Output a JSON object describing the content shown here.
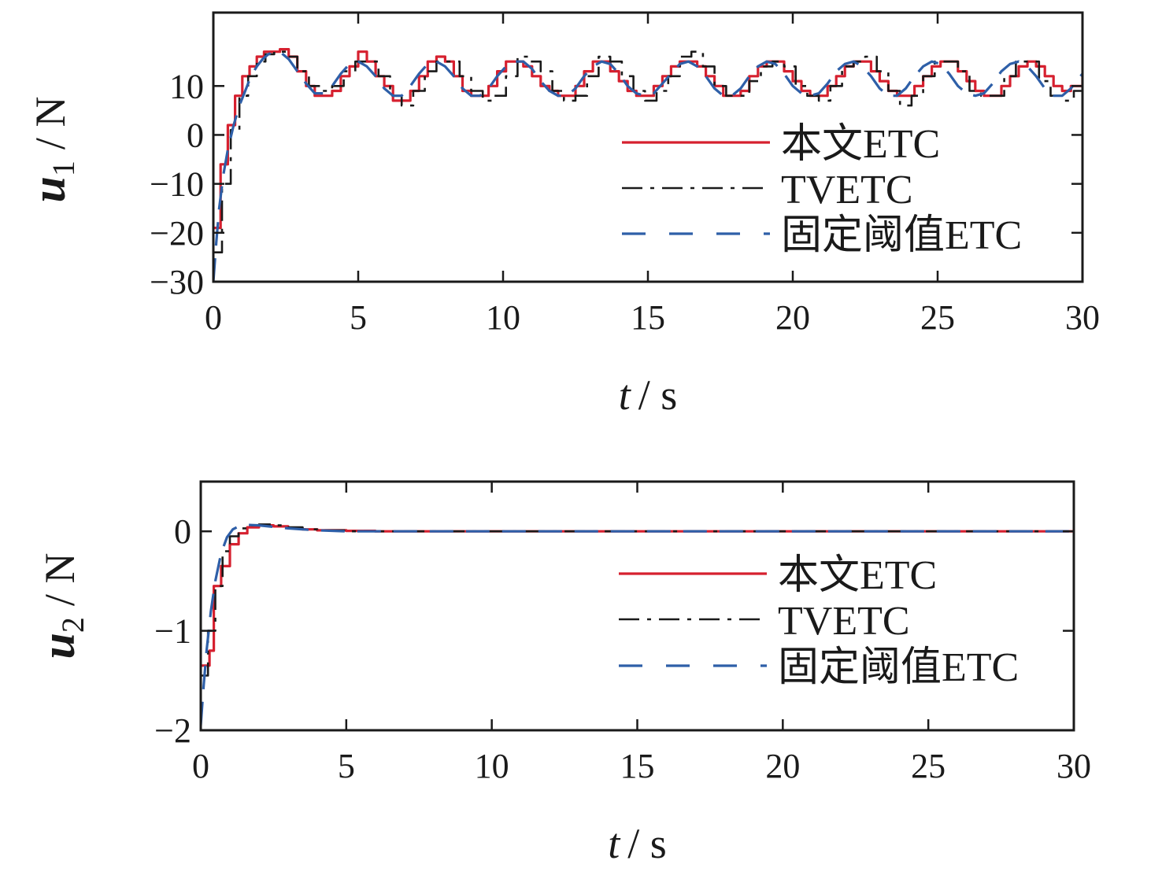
{
  "colors": {
    "proposed_etc": "#d6202f",
    "tvetc": "#1a1a1a",
    "fixed_threshold_etc": "#2e5fa8",
    "axis": "#1a1a1a"
  },
  "chart_data": [
    {
      "type": "line",
      "panel": "top",
      "ylabel_var": "u",
      "ylabel_sub": "1",
      "ylabel_unit": "/ N",
      "xlabel_var": "t",
      "xlabel_unit": "/ s",
      "xlim": [
        0,
        30
      ],
      "ylim": [
        -30,
        25
      ],
      "xticks": [
        0,
        5,
        10,
        15,
        20,
        25,
        30
      ],
      "yticks": [
        -30,
        -20,
        -10,
        0,
        10
      ],
      "ytick_labels": [
        "−30",
        "−20",
        "−10",
        "0",
        "10"
      ],
      "legend_position": "lower-right",
      "grid": false,
      "series": [
        {
          "name": "本文ETC",
          "style": "solid-step",
          "x": [
            0,
            0.25,
            0.5,
            0.75,
            1.0,
            1.25,
            1.5,
            1.75,
            2.0,
            2.3,
            2.6,
            2.9,
            3.2,
            3.5,
            3.8,
            4.1,
            4.4,
            4.7,
            5.0,
            5.3,
            5.6,
            5.9,
            6.2,
            6.5,
            6.8,
            7.1,
            7.4,
            7.7,
            8.0,
            8.3,
            8.6,
            8.9,
            9.2,
            9.5,
            9.8,
            10.1,
            10.4,
            10.7,
            11.0,
            11.3,
            11.6,
            11.9,
            12.2,
            12.5,
            12.8,
            13.1,
            13.4,
            13.7,
            14.0,
            14.3,
            14.6,
            14.9,
            15.2,
            15.5,
            15.8,
            16.1,
            16.4,
            16.7,
            17.0,
            17.3,
            17.6,
            17.9,
            18.2,
            18.5,
            18.8,
            19.1,
            19.4,
            19.7,
            20.0,
            20.3,
            20.6,
            20.9,
            21.2,
            21.5,
            21.8,
            22.1,
            22.4,
            22.7,
            23.0,
            23.3,
            23.6,
            23.9,
            24.2,
            24.5,
            24.8,
            25.1,
            25.4,
            25.7,
            26.0,
            26.3,
            26.6,
            26.9,
            27.2,
            27.5,
            27.8,
            28.1,
            28.4,
            28.7,
            29.0,
            29.3,
            29.6,
            30.0
          ],
          "y": [
            -19,
            -6,
            2,
            8,
            12,
            14,
            16,
            17,
            17,
            17.5,
            16,
            13,
            10,
            8,
            8,
            9,
            12,
            14,
            17,
            15,
            12,
            10,
            7,
            7,
            9,
            12,
            15,
            16,
            15,
            12,
            9,
            8,
            8,
            10,
            13,
            15,
            15,
            14,
            12,
            10,
            9,
            8,
            8,
            10,
            13,
            15,
            15,
            13,
            11,
            9,
            8,
            8,
            10,
            12,
            14,
            15,
            15,
            14,
            12,
            10,
            8,
            8,
            9,
            12,
            14,
            15,
            15,
            13,
            11,
            9,
            8,
            8,
            10,
            12,
            14,
            15,
            15,
            13,
            11,
            9,
            8,
            8,
            10,
            12,
            14,
            15,
            15,
            13,
            11,
            9,
            8,
            8,
            10,
            12,
            14,
            15,
            14,
            12,
            10,
            9,
            10,
            12
          ]
        },
        {
          "name": "TVETC",
          "style": "dash-dot-step",
          "x": [
            0,
            0.3,
            0.6,
            0.9,
            1.2,
            1.5,
            1.8,
            2.1,
            2.5,
            2.9,
            3.3,
            3.7,
            4.1,
            4.5,
            4.9,
            5.3,
            5.7,
            6.1,
            6.5,
            6.9,
            7.3,
            7.7,
            8.1,
            8.5,
            8.9,
            9.3,
            9.7,
            10.1,
            10.5,
            10.9,
            11.3,
            11.7,
            12.1,
            12.5,
            12.9,
            13.3,
            13.7,
            14.1,
            14.5,
            14.9,
            15.3,
            15.7,
            16.1,
            16.5,
            16.9,
            17.3,
            17.7,
            18.1,
            18.5,
            18.9,
            19.3,
            19.7,
            20.1,
            20.5,
            20.9,
            21.3,
            21.7,
            22.1,
            22.5,
            22.9,
            23.3,
            23.7,
            24.1,
            24.5,
            24.9,
            25.3,
            25.7,
            26.1,
            26.5,
            26.9,
            27.3,
            27.7,
            28.1,
            28.5,
            28.9,
            29.3,
            29.7,
            30.0
          ],
          "y": [
            -24,
            -10,
            1,
            8,
            12,
            15,
            16.5,
            17,
            16,
            13,
            10,
            9,
            10,
            13,
            15,
            15,
            12,
            8,
            6,
            9,
            13,
            15,
            15,
            12,
            9,
            7,
            8,
            12,
            16,
            15,
            13,
            9,
            7,
            8,
            12,
            16,
            15,
            12,
            9,
            7,
            9,
            12,
            16,
            17,
            14,
            10,
            8,
            8,
            11,
            14,
            15,
            14,
            10,
            8,
            7,
            10,
            14,
            15,
            16,
            13,
            9,
            6,
            8,
            12,
            15,
            15,
            13,
            9,
            8,
            8,
            12,
            15,
            15,
            11,
            8,
            7,
            9,
            12
          ]
        },
        {
          "name": "固定阈值ETC",
          "style": "dashed-smooth",
          "x": [
            0,
            0.1,
            0.2,
            0.35,
            0.5,
            0.7,
            0.9,
            1.1,
            1.3,
            1.5,
            1.7,
            1.9,
            2.1,
            2.3,
            2.6,
            2.9,
            3.2,
            3.5,
            3.8,
            4.1,
            4.4,
            4.7,
            5.0,
            5.3,
            5.6,
            5.9,
            6.2,
            6.5,
            6.8,
            7.1,
            7.4,
            7.7,
            8.0,
            8.3,
            8.6,
            8.9,
            9.2,
            9.5,
            9.8,
            10.1,
            10.4,
            10.7,
            11.0,
            11.3,
            11.6,
            11.9,
            12.2,
            12.5,
            12.8,
            13.1,
            13.4,
            13.7,
            14.0,
            14.3,
            14.6,
            14.9,
            15.2,
            15.5,
            15.8,
            16.1,
            16.4,
            16.7,
            17.0,
            17.3,
            17.6,
            17.9,
            18.2,
            18.5,
            18.8,
            19.1,
            19.4,
            19.7,
            20.0,
            20.3,
            20.6,
            20.9,
            21.2,
            21.5,
            21.8,
            22.1,
            22.4,
            22.7,
            23.0,
            23.3,
            23.6,
            23.9,
            24.2,
            24.5,
            24.8,
            25.1,
            25.4,
            25.7,
            26.0,
            26.3,
            26.6,
            26.9,
            27.2,
            27.5,
            27.8,
            28.1,
            28.4,
            28.7,
            29.0,
            29.3,
            29.6,
            30.0
          ],
          "y": [
            -30,
            -22,
            -15,
            -8,
            -3,
            2,
            6,
            9,
            12,
            14,
            15.5,
            16.5,
            17,
            17,
            15.5,
            13,
            10.5,
            8.5,
            8.5,
            10,
            12.5,
            14.5,
            15,
            14,
            12,
            9.5,
            8,
            8,
            10,
            12.5,
            14.5,
            15,
            14,
            12,
            9.5,
            8,
            8,
            9.5,
            12,
            14,
            15,
            15,
            13.5,
            11,
            9,
            8,
            8,
            9.5,
            12,
            14,
            15,
            14.5,
            12.5,
            10,
            8.5,
            8,
            8.5,
            10.5,
            12.5,
            14.5,
            15,
            14,
            12,
            9.5,
            8,
            8,
            9.5,
            12,
            14,
            15,
            14.5,
            12.5,
            10,
            8.5,
            8,
            8.5,
            10.5,
            13,
            14.5,
            15,
            14,
            12,
            9.5,
            8,
            8,
            9.5,
            12,
            14,
            15,
            14.5,
            12.5,
            10,
            8.5,
            8,
            8.5,
            10.5,
            13,
            14.5,
            15,
            14,
            12,
            9.5,
            8,
            8,
            9.5,
            12.5
          ]
        }
      ],
      "legend": [
        "本文ETC",
        "TVETC",
        "固定阈值ETC"
      ]
    },
    {
      "type": "line",
      "panel": "bottom",
      "ylabel_var": "u",
      "ylabel_sub": "2",
      "ylabel_unit": "/ N",
      "xlabel_var": "t",
      "xlabel_unit": "/ s",
      "xlim": [
        0,
        30
      ],
      "ylim": [
        -2,
        0.5
      ],
      "xticks": [
        0,
        5,
        10,
        15,
        20,
        25,
        30
      ],
      "yticks": [
        -2,
        -1,
        0
      ],
      "ytick_labels": [
        "−2",
        "−1",
        "0"
      ],
      "legend_position": "lower-right",
      "grid": false,
      "series": [
        {
          "name": "本文ETC",
          "style": "solid-step",
          "x": [
            0,
            0.3,
            0.45,
            0.7,
            1.0,
            1.3,
            1.6,
            2.0,
            2.5,
            3.0,
            3.5,
            4.0,
            5.0,
            6.0,
            8.0,
            10.0,
            15.0,
            20.0,
            25.0,
            30.0
          ],
          "y": [
            -1.35,
            -1.2,
            -0.55,
            -0.35,
            -0.13,
            -0.02,
            0.04,
            0.06,
            0.05,
            0.03,
            0.02,
            0.01,
            0.005,
            0.0,
            0.0,
            0.0,
            0.0,
            0.0,
            0.0,
            0.0
          ]
        },
        {
          "name": "TVETC",
          "style": "dash-dot-step",
          "x": [
            0,
            0.25,
            0.5,
            0.75,
            1.0,
            1.3,
            1.6,
            2.0,
            2.5,
            3.0,
            3.5,
            4.0,
            5.0,
            6.0,
            8.0,
            10.0,
            15.0,
            20.0,
            25.0,
            30.0
          ],
          "y": [
            -1.45,
            -1.0,
            -0.55,
            -0.2,
            -0.05,
            0.03,
            0.06,
            0.07,
            0.06,
            0.04,
            0.02,
            0.01,
            0.0,
            0.0,
            0.0,
            0.0,
            0.0,
            0.0,
            0.0,
            0.0
          ]
        },
        {
          "name": "固定阈值ETC",
          "style": "dashed-smooth",
          "x": [
            0,
            0.1,
            0.2,
            0.35,
            0.5,
            0.7,
            0.9,
            1.1,
            1.3,
            1.6,
            2.0,
            2.5,
            3.0,
            3.5,
            4.0,
            5.0,
            6.0,
            8.0,
            10.0,
            15.0,
            20.0,
            25.0,
            30.0
          ],
          "y": [
            -1.95,
            -1.55,
            -1.2,
            -0.8,
            -0.5,
            -0.22,
            -0.06,
            0.02,
            0.05,
            0.065,
            0.06,
            0.045,
            0.03,
            0.02,
            0.01,
            0.0,
            0.0,
            0.0,
            0.0,
            0.0,
            0.0,
            0.0,
            0.0
          ]
        }
      ],
      "legend": [
        "本文ETC",
        "TVETC",
        "固定阈值ETC"
      ]
    }
  ]
}
